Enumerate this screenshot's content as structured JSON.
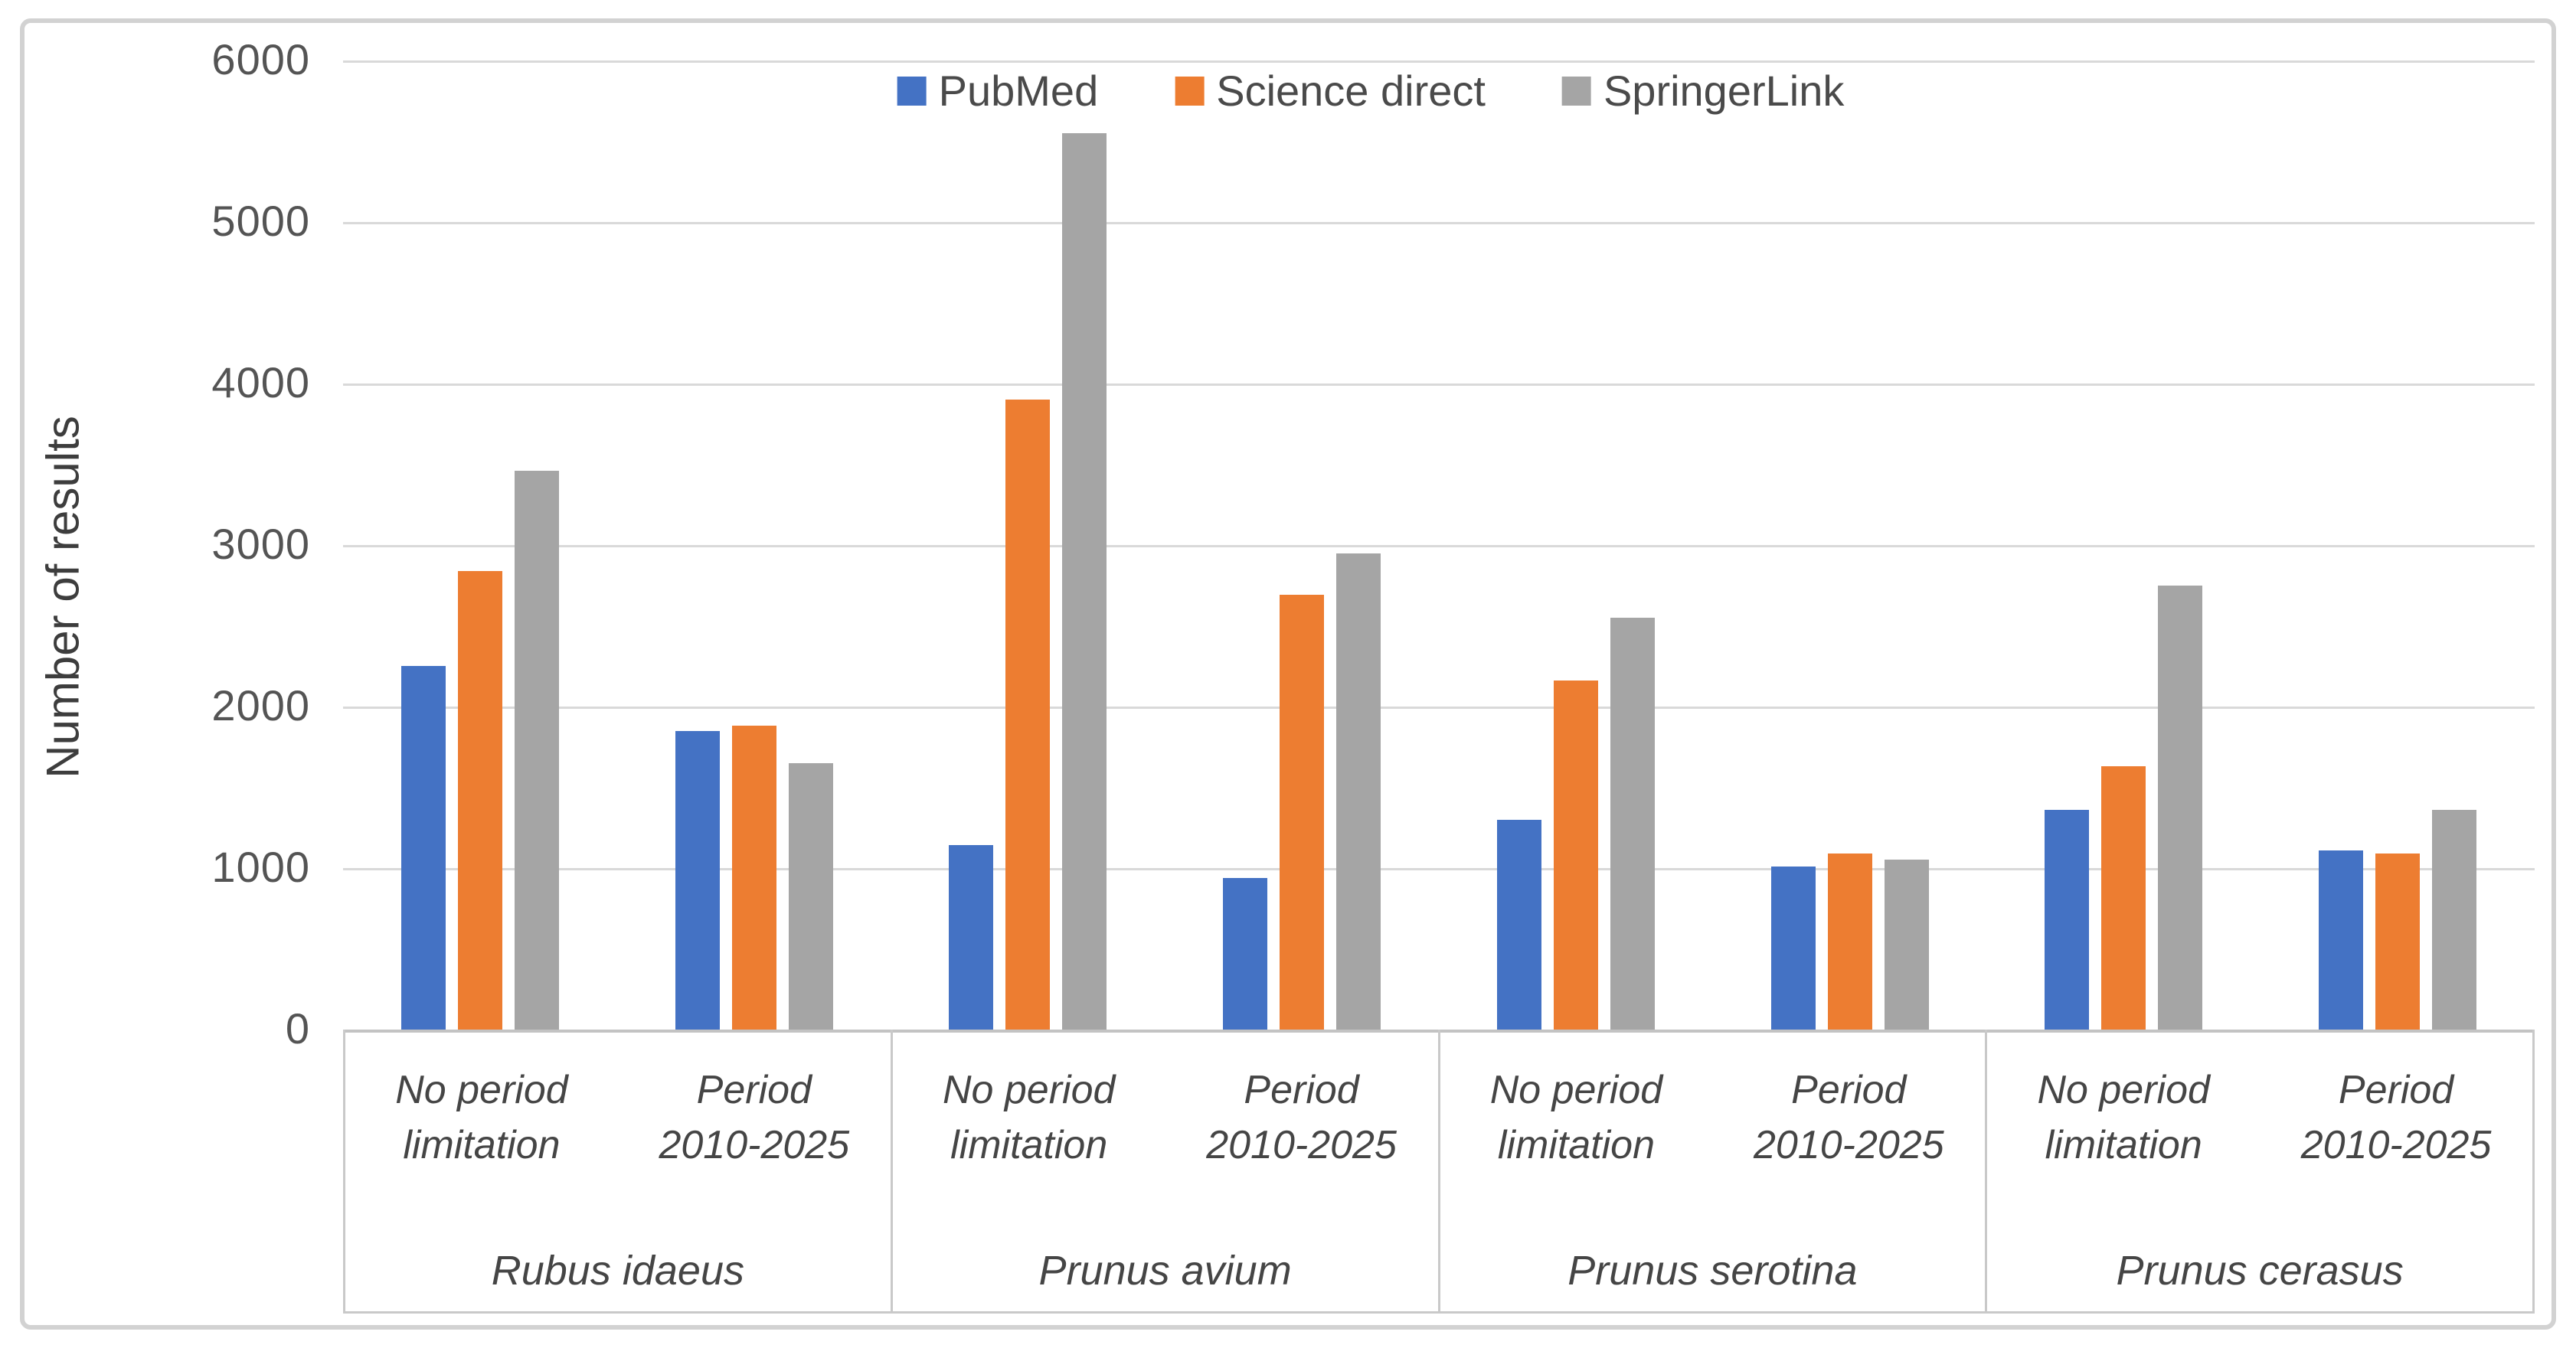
{
  "figure": {
    "background": "#ffffff",
    "border_color": "#d2d2d2"
  },
  "chart_data": {
    "type": "bar",
    "title": "",
    "ylabel": "Number of results",
    "xlabel": "",
    "ylim": [
      0,
      6000
    ],
    "ytick_step": 1000,
    "yticks": [
      6000,
      5000,
      4000,
      3000,
      2000,
      1000,
      0
    ],
    "grid": true,
    "gridline_color": "#d9d9d9",
    "axis_line_color": "#c3c3c3",
    "legend_position": "top-center",
    "series": [
      {
        "name": "PubMed",
        "color": "#4472C4"
      },
      {
        "name": "Science direct",
        "color": "#ED7D31"
      },
      {
        "name": "SpringerLink",
        "color": "#A5A5A5"
      }
    ],
    "groups": [
      {
        "label": "Rubus idaeus",
        "subgroups": [
          {
            "label": "No period limitation",
            "label_lines": [
              "No period",
              "limitation"
            ],
            "values": [
              2250,
              2840,
              3460
            ]
          },
          {
            "label": "Period 2010-2025",
            "label_lines": [
              "Period",
              "2010-2025"
            ],
            "values": [
              1850,
              1880,
              1650
            ]
          }
        ]
      },
      {
        "label": "Prunus avium",
        "subgroups": [
          {
            "label": "No period limitation",
            "label_lines": [
              "No period",
              "limitation"
            ],
            "values": [
              1140,
              3900,
              5550
            ]
          },
          {
            "label": "Period 2010-2025",
            "label_lines": [
              "Period",
              "2010-2025"
            ],
            "values": [
              940,
              2690,
              2950
            ]
          }
        ]
      },
      {
        "label": "Prunus serotina",
        "subgroups": [
          {
            "label": "No period limitation",
            "label_lines": [
              "No period",
              "limitation"
            ],
            "values": [
              1300,
              2160,
              2550
            ]
          },
          {
            "label": "Period 2010-2025",
            "label_lines": [
              "Period",
              "2010-2025"
            ],
            "values": [
              1010,
              1090,
              1050
            ]
          }
        ]
      },
      {
        "label": "Prunus cerasus",
        "subgroups": [
          {
            "label": "No period limitation",
            "label_lines": [
              "No period",
              "limitation"
            ],
            "values": [
              1360,
              1630,
              2750
            ]
          },
          {
            "label": "Period 2010-2025",
            "label_lines": [
              "Period",
              "2010-2025"
            ],
            "values": [
              1110,
              1090,
              1360
            ]
          }
        ]
      }
    ]
  }
}
